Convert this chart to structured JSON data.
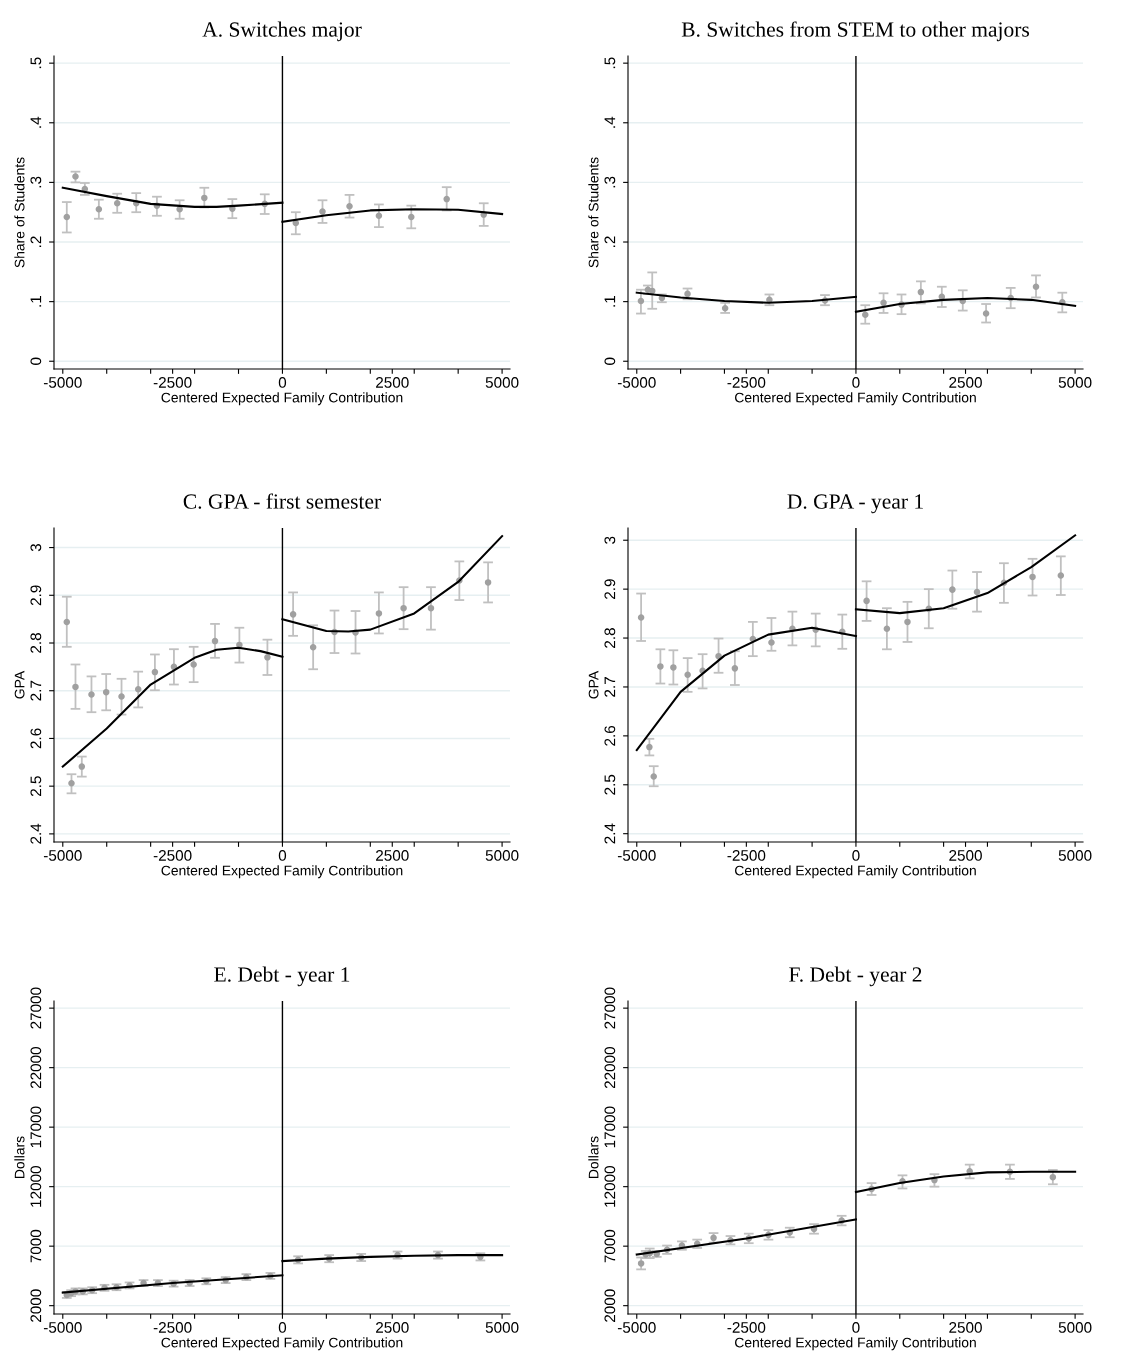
{
  "chart_data": [
    {
      "type": "scatter",
      "title": "A. Switches major",
      "xlabel": "Centered Expected Family Contribution",
      "ylabel": "Share of Students",
      "xlim": [
        -5200,
        5180
      ],
      "xticks": [
        -5000,
        {
          "value": -4000,
          "label": null
        },
        {
          "value": -3000,
          "label": null
        },
        -2500,
        {
          "value": -2000,
          "label": null
        },
        {
          "value": -1000,
          "label": null
        },
        0,
        {
          "value": 1000,
          "label": null
        },
        {
          "value": 2000,
          "label": null
        },
        2500,
        {
          "value": 3000,
          "label": null
        },
        {
          "value": 4000,
          "label": null
        },
        5000
      ],
      "ylim": [
        -0.013,
        0.512
      ],
      "yticks": [
        0,
        {
          "value": 0.1,
          "label": ".1"
        },
        {
          "value": 0.2,
          "label": ".2"
        },
        {
          "value": 0.3,
          "label": ".3"
        },
        {
          "value": 0.4,
          "label": ".4"
        },
        {
          "value": 0.5,
          "label": ".5"
        }
      ],
      "grid": "y",
      "ref_lines": [
        {
          "axis": "x",
          "value": 0,
          "label": null,
          "color": "#000000"
        }
      ],
      "series": [
        {
          "marker": "circle",
          "color": "#a0a0a0",
          "x": [
            -4909,
            -4711,
            -4498,
            -4179,
            -3761,
            -3328,
            -2857,
            -2340,
            -1778,
            -1140,
            -403,
            304,
            912,
            1527,
            2196,
            2933,
            3739,
            4582
          ],
          "values": [
            0.242,
            0.31,
            0.289,
            0.255,
            0.265,
            0.265,
            0.261,
            0.255,
            0.274,
            0.256,
            0.264,
            0.232,
            0.251,
            0.26,
            0.244,
            0.242,
            0.272,
            0.246
          ],
          "errors": [
            [
              0.216,
              0.267
            ],
            [
              0.3,
              0.318
            ],
            [
              0.279,
              0.299
            ],
            [
              0.239,
              0.271
            ],
            [
              0.249,
              0.281
            ],
            [
              0.25,
              0.282
            ],
            [
              0.244,
              0.276
            ],
            [
              0.239,
              0.27
            ],
            [
              0.258,
              0.291
            ],
            [
              0.24,
              0.272
            ],
            [
              0.247,
              0.28
            ],
            [
              0.213,
              0.25
            ],
            [
              0.232,
              0.27
            ],
            [
              0.241,
              0.279
            ],
            [
              0.225,
              0.263
            ],
            [
              0.223,
              0.261
            ],
            [
              0.253,
              0.292
            ],
            [
              0.227,
              0.265
            ]
          ]
        },
        {
          "type": "line",
          "color": "#000000",
          "x": [
            -5000,
            -4000,
            -3000,
            -2000,
            -1500,
            -1000,
            0
          ],
          "values": [
            0.291,
            0.277,
            0.264,
            0.259,
            0.259,
            0.261,
            0.266
          ]
        },
        {
          "type": "line",
          "color": "#000000",
          "x": [
            0,
            1000,
            2000,
            3000,
            4000,
            5000
          ],
          "values": [
            0.234,
            0.245,
            0.253,
            0.255,
            0.254,
            0.247
          ]
        }
      ]
    },
    {
      "type": "scatter",
      "title": "B. Switches from STEM to other majors",
      "xlabel": "Centered Expected Family Contribution",
      "ylabel": "Share of Students",
      "xlim": [
        -5200,
        5180
      ],
      "xticks": [
        -5000,
        {
          "value": -4000,
          "label": null
        },
        {
          "value": -3000,
          "label": null
        },
        -2500,
        {
          "value": -2000,
          "label": null
        },
        {
          "value": -1000,
          "label": null
        },
        0,
        {
          "value": 1000,
          "label": null
        },
        {
          "value": 2000,
          "label": null
        },
        2500,
        {
          "value": 3000,
          "label": null
        },
        {
          "value": 4000,
          "label": null
        },
        5000
      ],
      "ylim": [
        -0.013,
        0.512
      ],
      "yticks": [
        0,
        {
          "value": 0.1,
          "label": ".1"
        },
        {
          "value": 0.2,
          "label": ".2"
        },
        {
          "value": 0.3,
          "label": ".3"
        },
        {
          "value": 0.4,
          "label": ".4"
        },
        {
          "value": 0.5,
          "label": ".5"
        }
      ],
      "grid": "y",
      "ref_lines": [
        {
          "axis": "x",
          "value": 0,
          "label": null,
          "color": "#000000"
        }
      ],
      "series": [
        {
          "marker": "circle",
          "color": "#a0a0a0",
          "x": [
            -4905,
            -4746,
            -4647,
            -4427,
            -3842,
            -2984,
            -1974,
            -706,
            213,
            630,
            1040,
            1481,
            1959,
            2437,
            2969,
            3531,
            4108,
            4708
          ],
          "values": [
            0.101,
            0.12,
            0.118,
            0.106,
            0.113,
            0.089,
            0.103,
            0.102,
            0.078,
            0.098,
            0.095,
            0.116,
            0.108,
            0.101,
            0.08,
            0.106,
            0.125,
            0.099
          ],
          "errors": [
            [
              0.08,
              0.12
            ],
            [
              0.113,
              0.127
            ],
            [
              0.088,
              0.149
            ],
            [
              0.099,
              0.112
            ],
            [
              0.104,
              0.122
            ],
            [
              0.081,
              0.098
            ],
            [
              0.094,
              0.112
            ],
            [
              0.094,
              0.111
            ],
            [
              0.063,
              0.094
            ],
            [
              0.081,
              0.114
            ],
            [
              0.079,
              0.112
            ],
            [
              0.097,
              0.134
            ],
            [
              0.091,
              0.125
            ],
            [
              0.085,
              0.119
            ],
            [
              0.065,
              0.096
            ],
            [
              0.089,
              0.123
            ],
            [
              0.107,
              0.144
            ],
            [
              0.082,
              0.115
            ]
          ]
        },
        {
          "type": "line",
          "color": "#000000",
          "x": [
            -5000,
            -4000,
            -3000,
            -2000,
            -1000,
            0
          ],
          "values": [
            0.115,
            0.107,
            0.101,
            0.098,
            0.101,
            0.108
          ]
        },
        {
          "type": "line",
          "color": "#000000",
          "x": [
            0,
            1000,
            2000,
            3000,
            4000,
            5000
          ],
          "values": [
            0.083,
            0.096,
            0.103,
            0.106,
            0.103,
            0.093
          ]
        }
      ]
    },
    {
      "type": "scatter",
      "title": "C. GPA - first semester",
      "xlabel": "Centered Expected Family Contribution",
      "ylabel": "GPA",
      "xlim": [
        -5200,
        5180
      ],
      "xticks": [
        -5000,
        {
          "value": -4000,
          "label": null
        },
        {
          "value": -3000,
          "label": null
        },
        -2500,
        {
          "value": -2000,
          "label": null
        },
        {
          "value": -1000,
          "label": null
        },
        0,
        {
          "value": 1000,
          "label": null
        },
        {
          "value": 2000,
          "label": null
        },
        2500,
        {
          "value": 3000,
          "label": null
        },
        {
          "value": 4000,
          "label": null
        },
        5000
      ],
      "ylim": [
        2.383,
        3.041
      ],
      "yticks": [
        2.4,
        2.5,
        2.6,
        2.7,
        2.8,
        2.9,
        3
      ],
      "grid": "y",
      "ref_lines": [
        {
          "axis": "x",
          "value": 0,
          "label": null,
          "color": "#000000"
        }
      ],
      "series": [
        {
          "marker": "circle",
          "color": "#a0a0a0",
          "x": [
            -4909,
            -4802,
            -4711,
            -4567,
            -4347,
            -4012,
            -3663,
            -3283,
            -2903,
            -2470,
            -2021,
            -1535,
            -980,
            -342,
            243,
            699,
            1185,
            1664,
            2196,
            2758,
            3381,
            4027,
            4681
          ],
          "values": [
            2.844,
            2.506,
            2.708,
            2.541,
            2.692,
            2.697,
            2.688,
            2.703,
            2.739,
            2.75,
            2.755,
            2.804,
            2.796,
            2.77,
            2.86,
            2.791,
            2.823,
            2.822,
            2.862,
            2.873,
            2.873,
            2.931,
            2.927
          ],
          "errors": [
            [
              2.792,
              2.897
            ],
            [
              2.485,
              2.525
            ],
            [
              2.662,
              2.755
            ],
            [
              2.52,
              2.562
            ],
            [
              2.655,
              2.73
            ],
            [
              2.659,
              2.735
            ],
            [
              2.65,
              2.725
            ],
            [
              2.665,
              2.74
            ],
            [
              2.701,
              2.776
            ],
            [
              2.713,
              2.787
            ],
            [
              2.718,
              2.792
            ],
            [
              2.769,
              2.84
            ],
            [
              2.759,
              2.832
            ],
            [
              2.733,
              2.807
            ],
            [
              2.815,
              2.906
            ],
            [
              2.745,
              2.837
            ],
            [
              2.779,
              2.868
            ],
            [
              2.778,
              2.867
            ],
            [
              2.82,
              2.906
            ],
            [
              2.829,
              2.917
            ],
            [
              2.828,
              2.917
            ],
            [
              2.89,
              2.971
            ],
            [
              2.885,
              2.969
            ]
          ]
        },
        {
          "type": "line",
          "color": "#000000",
          "x": [
            -5000,
            -4000,
            -3000,
            -2000,
            -1500,
            -1000,
            -500,
            0
          ],
          "values": [
            2.541,
            2.621,
            2.713,
            2.769,
            2.786,
            2.79,
            2.783,
            2.771
          ]
        },
        {
          "type": "line",
          "color": "#000000",
          "x": [
            0,
            1000,
            1500,
            2000,
            3000,
            4000,
            5000
          ],
          "values": [
            2.85,
            2.825,
            2.824,
            2.828,
            2.862,
            2.928,
            3.024
          ]
        }
      ]
    },
    {
      "type": "scatter",
      "title": "D. GPA - year 1",
      "xlabel": "Centered Expected Family Contribution",
      "ylabel": "GPA",
      "xlim": [
        -5200,
        5180
      ],
      "xticks": [
        -5000,
        {
          "value": -4000,
          "label": null
        },
        {
          "value": -3000,
          "label": null
        },
        -2500,
        {
          "value": -2000,
          "label": null
        },
        {
          "value": -1000,
          "label": null
        },
        0,
        {
          "value": 1000,
          "label": null
        },
        {
          "value": 2000,
          "label": null
        },
        2500,
        {
          "value": 3000,
          "label": null
        },
        {
          "value": 4000,
          "label": null
        },
        5000
      ],
      "ylim": [
        2.383,
        3.025
      ],
      "yticks": [
        2.4,
        2.5,
        2.6,
        2.7,
        2.8,
        2.9,
        3
      ],
      "grid": "y",
      "ref_lines": [
        {
          "axis": "x",
          "value": 0,
          "label": null,
          "color": "#000000"
        }
      ],
      "series": [
        {
          "marker": "circle",
          "color": "#a0a0a0",
          "x": [
            -4901,
            -4712,
            -4613,
            -4461,
            -4165,
            -3839,
            -3498,
            -3134,
            -2762,
            -2352,
            -1927,
            -1449,
            -918,
            -311,
            243,
            706,
            1176,
            1662,
            2200,
            2762,
            3376,
            4029,
            4674
          ],
          "values": [
            2.842,
            2.577,
            2.517,
            2.742,
            2.74,
            2.725,
            2.733,
            2.763,
            2.738,
            2.798,
            2.791,
            2.819,
            2.817,
            2.813,
            2.876,
            2.819,
            2.833,
            2.86,
            2.899,
            2.894,
            2.913,
            2.925,
            2.928
          ],
          "errors": [
            [
              2.794,
              2.891
            ],
            [
              2.56,
              2.594
            ],
            [
              2.497,
              2.538
            ],
            [
              2.707,
              2.777
            ],
            [
              2.705,
              2.775
            ],
            [
              2.69,
              2.759
            ],
            [
              2.697,
              2.767
            ],
            [
              2.729,
              2.799
            ],
            [
              2.704,
              2.773
            ],
            [
              2.763,
              2.833
            ],
            [
              2.774,
              2.841
            ],
            [
              2.785,
              2.854
            ],
            [
              2.783,
              2.85
            ],
            [
              2.778,
              2.848
            ],
            [
              2.835,
              2.916
            ],
            [
              2.777,
              2.861
            ],
            [
              2.792,
              2.874
            ],
            [
              2.82,
              2.9
            ],
            [
              2.86,
              2.938
            ],
            [
              2.854,
              2.935
            ],
            [
              2.872,
              2.953
            ],
            [
              2.887,
              2.962
            ],
            [
              2.888,
              2.967
            ]
          ]
        },
        {
          "type": "line",
          "color": "#000000",
          "x": [
            -5000,
            -4000,
            -3000,
            -2000,
            -1000,
            0
          ],
          "values": [
            2.571,
            2.69,
            2.764,
            2.807,
            2.821,
            2.804
          ]
        },
        {
          "type": "line",
          "color": "#000000",
          "x": [
            0,
            1000,
            2000,
            3000,
            4000,
            5000
          ],
          "values": [
            2.859,
            2.851,
            2.861,
            2.892,
            2.945,
            3.01
          ]
        }
      ]
    },
    {
      "type": "scatter",
      "title": "E. Debt - year 1",
      "xlabel": "Centered Expected Family Contribution",
      "ylabel": "Dollars",
      "xlim": [
        -5200,
        5180
      ],
      "xticks": [
        -5000,
        {
          "value": -4000,
          "label": null
        },
        {
          "value": -3000,
          "label": null
        },
        -2500,
        {
          "value": -2000,
          "label": null
        },
        {
          "value": -1000,
          "label": null
        },
        0,
        {
          "value": 1000,
          "label": null
        },
        {
          "value": 2000,
          "label": null
        },
        2500,
        {
          "value": 3000,
          "label": null
        },
        {
          "value": 4000,
          "label": null
        },
        5000
      ],
      "ylim": [
        1300,
        27600
      ],
      "yticks": [
        2000,
        7000,
        12000,
        17000,
        22000,
        27000
      ],
      "grid": "y",
      "ref_lines": [
        {
          "axis": "x",
          "value": 0,
          "label": null,
          "color": "#000000"
        }
      ],
      "series": [
        {
          "marker": "circle",
          "color": "#a0a0a0",
          "x": [
            -4909,
            -4810,
            -4711,
            -4544,
            -4331,
            -4050,
            -3777,
            -3480,
            -3161,
            -2834,
            -2477,
            -2112,
            -1733,
            -1292,
            -821,
            -274,
            357,
            1064,
            1793,
            2621,
            3541,
            4506
          ],
          "values": [
            2900,
            3050,
            3200,
            3200,
            3300,
            3500,
            3550,
            3700,
            3900,
            3900,
            3850,
            3900,
            4050,
            4150,
            4400,
            4500,
            5850,
            5950,
            6050,
            6250,
            6250,
            6100
          ],
          "errors": [
            250,
            250,
            250,
            250,
            250,
            250,
            250,
            250,
            250,
            250,
            250,
            250,
            250,
            250,
            250,
            250,
            300,
            300,
            300,
            300,
            300,
            300
          ]
        },
        {
          "type": "line",
          "color": "#000000",
          "x": [
            -5000,
            -2500,
            0
          ],
          "values": [
            3100,
            3900,
            4550
          ]
        },
        {
          "type": "line",
          "color": "#000000",
          "x": [
            0,
            1000,
            2000,
            3000,
            4000,
            5000
          ],
          "values": [
            5750,
            5950,
            6100,
            6200,
            6250,
            6250
          ]
        }
      ]
    },
    {
      "type": "scatter",
      "title": "F. Debt - year 2",
      "xlabel": "Centered Expected Family Contribution",
      "ylabel": "Dollars",
      "xlim": [
        -5200,
        5180
      ],
      "xticks": [
        -5000,
        {
          "value": -4000,
          "label": null
        },
        {
          "value": -3000,
          "label": null
        },
        -2500,
        {
          "value": -2000,
          "label": null
        },
        {
          "value": -1000,
          "label": null
        },
        0,
        {
          "value": 1000,
          "label": null
        },
        {
          "value": 2000,
          "label": null
        },
        2500,
        {
          "value": 3000,
          "label": null
        },
        {
          "value": 4000,
          "label": null
        },
        5000
      ],
      "ylim": [
        1300,
        27600
      ],
      "yticks": [
        2000,
        7000,
        12000,
        17000,
        22000,
        27000
      ],
      "grid": "y",
      "ref_lines": [
        {
          "axis": "x",
          "value": 0,
          "label": null,
          "color": "#000000"
        }
      ],
      "series": [
        {
          "marker": "circle",
          "color": "#a0a0a0",
          "x": [
            -4901,
            -4795,
            -4704,
            -4544,
            -4309,
            -3970,
            -3621,
            -3248,
            -2862,
            -2445,
            -1996,
            -1510,
            -956,
            -326,
            357,
            1062,
            1791,
            2595,
            3513,
            4492
          ],
          "values": [
            5550,
            6300,
            6400,
            6350,
            6700,
            7050,
            7200,
            7700,
            7500,
            7650,
            7950,
            8150,
            8450,
            9150,
            11800,
            12450,
            12550,
            13300,
            13250,
            12800
          ],
          "errors": [
            [
              5050,
              6050
            ],
            300,
            [
              6000,
              6800
            ],
            250,
            350,
            350,
            350,
            400,
            350,
            400,
            400,
            400,
            400,
            400,
            [
              11300,
              12300
            ],
            [
              11850,
              12950
            ],
            [
              12000,
              13050
            ],
            [
              12700,
              13850
            ],
            [
              12650,
              13850
            ],
            [
              12200,
              13400
            ]
          ]
        },
        {
          "type": "line",
          "color": "#000000",
          "x": [
            -5000,
            -2500,
            0
          ],
          "values": [
            6300,
            7650,
            9250
          ]
        },
        {
          "type": "line",
          "color": "#000000",
          "x": [
            0,
            1000,
            2000,
            3000,
            4000,
            5000
          ],
          "values": [
            11550,
            12300,
            12850,
            13200,
            13250,
            13250
          ]
        }
      ]
    }
  ]
}
